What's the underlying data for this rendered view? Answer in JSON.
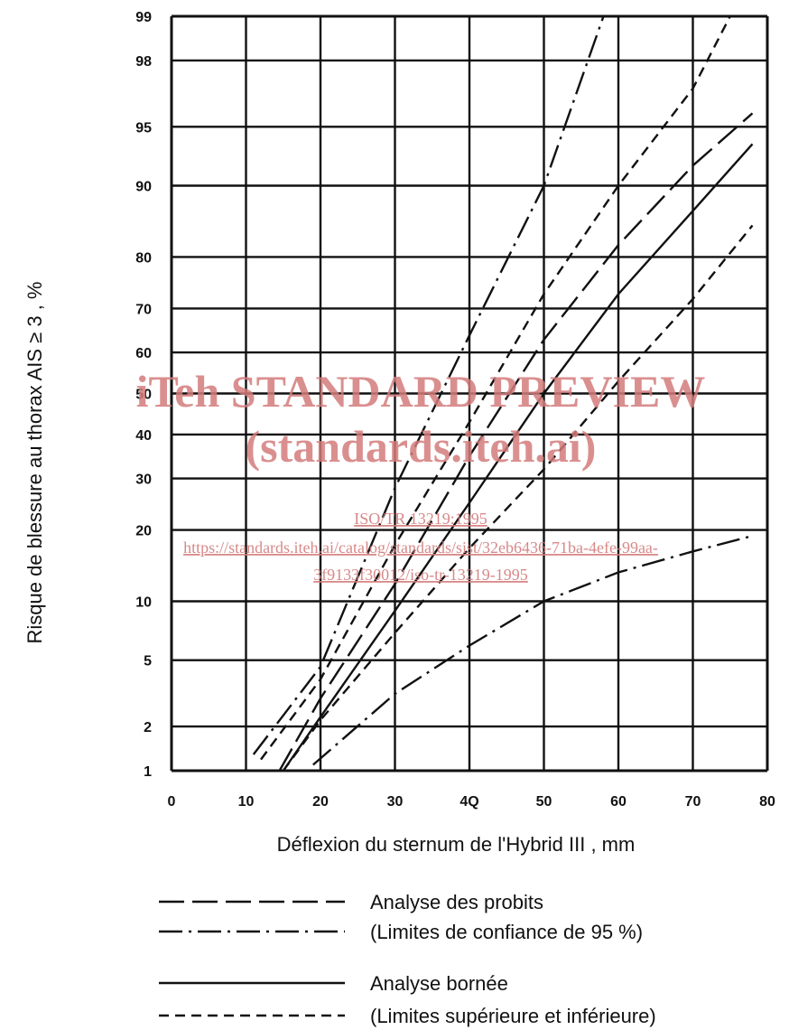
{
  "chart_data": {
    "type": "line",
    "xlabel": "Déflexion du sternum de l'Hybrid III , mm",
    "ylabel": "Risque de blessure au thorax AIS ≥ 3 , %",
    "x_ticks": [
      "0",
      "10",
      "20",
      "30",
      "4Q",
      "50",
      "60",
      "70",
      "80"
    ],
    "xlim": [
      0,
      80
    ],
    "y_scale": "probability",
    "y_ticks": [
      "99",
      "98",
      "95",
      "90",
      "80",
      "70",
      "60",
      "50",
      "40",
      "30",
      "20",
      "10",
      "5",
      "2",
      "1"
    ],
    "ylim": [
      1,
      99
    ],
    "grid": true,
    "series": [
      {
        "style": "long-dash",
        "points": [
          [
            14.5,
            1
          ],
          [
            20,
            3
          ],
          [
            30,
            12
          ],
          [
            40,
            35
          ],
          [
            50,
            63
          ],
          [
            60,
            82
          ],
          [
            70,
            92
          ],
          [
            78,
            95.8
          ]
        ]
      },
      {
        "style": "dash-dot",
        "points": [
          [
            11,
            1.3
          ],
          [
            20,
            4.6
          ],
          [
            30,
            28
          ],
          [
            40,
            64
          ],
          [
            50,
            90
          ],
          [
            58,
            99
          ]
        ]
      },
      {
        "style": "dash-dot",
        "points": [
          [
            19,
            1.1
          ],
          [
            30,
            3.2
          ],
          [
            40,
            6
          ],
          [
            50,
            10
          ],
          [
            60,
            13.5
          ],
          [
            70,
            16.5
          ],
          [
            78,
            19
          ]
        ]
      },
      {
        "style": "solid",
        "points": [
          [
            15,
            1
          ],
          [
            20,
            2.3
          ],
          [
            30,
            9
          ],
          [
            40,
            25
          ],
          [
            50,
            50
          ],
          [
            60,
            73
          ],
          [
            70,
            87
          ],
          [
            78,
            93.8
          ]
        ]
      },
      {
        "style": "short-dash",
        "points": [
          [
            12,
            1.2
          ],
          [
            20,
            3.9
          ],
          [
            30,
            17.5
          ],
          [
            40,
            43
          ],
          [
            50,
            73
          ],
          [
            60,
            90
          ],
          [
            70,
            97
          ],
          [
            75,
            99
          ]
        ]
      },
      {
        "style": "short-dash",
        "points": [
          [
            15,
            1
          ],
          [
            20,
            2.2
          ],
          [
            30,
            7
          ],
          [
            40,
            17
          ],
          [
            50,
            32
          ],
          [
            60,
            53
          ],
          [
            70,
            72
          ],
          [
            78,
            85
          ]
        ]
      }
    ]
  },
  "legend": {
    "items": [
      {
        "style": "long-dash",
        "label": "Analyse des probits"
      },
      {
        "style": "dash-dot",
        "label": "(Limites de confiance de 95 %)"
      },
      {
        "style": "solid",
        "label": "Analyse bornée"
      },
      {
        "style": "short-dash",
        "label": "(Limites supérieure et inférieure)"
      }
    ]
  },
  "watermark": {
    "title": "iTeh STANDARD PREVIEW",
    "subtitle": "(standards.iteh.ai)",
    "link1": "ISO/TR 13219:1995",
    "link2": "https://standards.iteh.ai/catalog/standards/sist/32eb6436-71ba-4efe-99aa-",
    "link3": "3f9133f30012/iso-tr-13219-1995",
    "color": "#d47b7b"
  }
}
